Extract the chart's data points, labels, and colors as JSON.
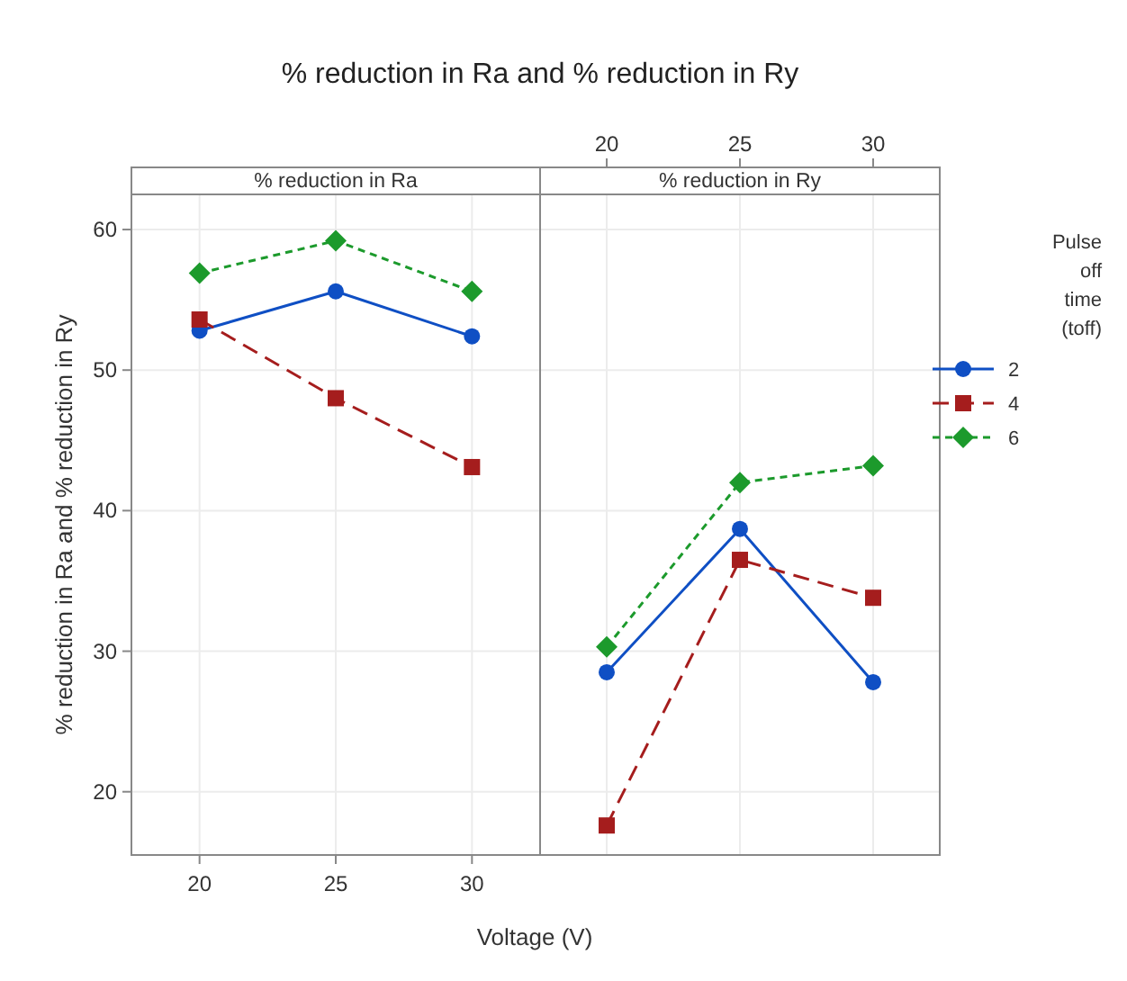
{
  "chart_data": [
    {
      "type": "line",
      "title": "% reduction in Ra and % reduction in Ry",
      "subtitle": "% reduction in Ra",
      "xlabel": "Voltage (V)",
      "ylabel": "% reduction in Ra and % reduction in Ry",
      "x": [
        20,
        25,
        30
      ],
      "xlim": [
        17.5,
        32.5
      ],
      "xticks": [
        20,
        25,
        30
      ],
      "ylim": [
        15.5,
        62.5
      ],
      "yticks": [
        20,
        30,
        40,
        50,
        60
      ],
      "grid": true,
      "legend": false,
      "series": [
        {
          "color": "#0f4fc4",
          "values": [
            52.8,
            55.6,
            52.4
          ],
          "marker": "circle",
          "line_style": "solid"
        },
        {
          "color": "#a51d1d",
          "values": [
            53.6,
            48.0,
            43.1
          ],
          "marker": "square",
          "line_style": "dashed"
        },
        {
          "color": "#1c9a2c",
          "values": [
            56.9,
            59.2,
            55.6
          ],
          "marker": "diamond",
          "line_style": "dotted"
        }
      ]
    },
    {
      "type": "line",
      "subtitle": "% reduction in Ry",
      "x": [
        20,
        25,
        30
      ],
      "xlim": [
        17.5,
        32.5
      ],
      "xticks": [
        20,
        25,
        30
      ],
      "ylim": [
        15.5,
        62.5
      ],
      "yticks": [
        20,
        30,
        40,
        50,
        60
      ],
      "grid": true,
      "tick_labels": "x",
      "legend": "right",
      "legend_title": "Pulse off time (toff)",
      "series": [
        {
          "name": "2",
          "color": "#0f4fc4",
          "values": [
            28.5,
            38.7,
            27.8
          ],
          "marker": "circle",
          "line_style": "solid"
        },
        {
          "name": "4",
          "color": "#a51d1d",
          "values": [
            17.6,
            36.5,
            33.8
          ],
          "marker": "square",
          "line_style": "dashed"
        },
        {
          "name": "6",
          "color": "#1c9a2c",
          "values": [
            30.3,
            42.0,
            43.2
          ],
          "marker": "diamond",
          "line_style": "dotted"
        }
      ]
    }
  ]
}
